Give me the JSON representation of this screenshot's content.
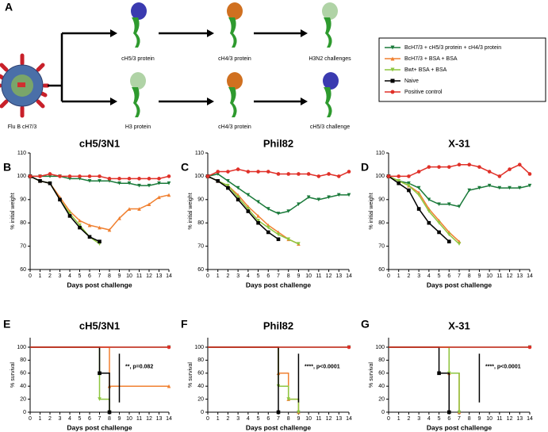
{
  "schematic": {
    "panel": "A",
    "virus": "Flu B cH7/3",
    "top": [
      "cH5/3 protein",
      "cH4/3 protein",
      "H3N2 challenges"
    ],
    "bottom": [
      "H3 protein",
      "cH4/3 protein",
      "cH5/3 challenge"
    ]
  },
  "legend": [
    {
      "name": "BcH7/3 + cH5/3 protein + cH4/3 protein",
      "color": "#1a7a3a"
    },
    {
      "name": "BcH7/3 + BSA + BSA",
      "color": "#f08030"
    },
    {
      "name": "Bwt+ BSA + BSA",
      "color": "#8dc63f"
    },
    {
      "name": "Naive",
      "color": "#000000"
    },
    {
      "name": "Positive control",
      "color": "#e03028"
    }
  ],
  "chart_data": [
    {
      "type": "line",
      "panel": "B",
      "title": "cH5/3N1",
      "xlabel": "Days post challenge",
      "ylabel": "% initial weight",
      "x": [
        0,
        1,
        2,
        3,
        4,
        5,
        6,
        7,
        8,
        9,
        10,
        11,
        12,
        13,
        14
      ],
      "xlim": [
        0,
        14
      ],
      "xticks": [
        0,
        1,
        2,
        3,
        4,
        5,
        6,
        7,
        8,
        9,
        10,
        11,
        12,
        13,
        14
      ],
      "ylim": [
        60,
        110
      ],
      "yticks": [
        60,
        70,
        80,
        90,
        100,
        110
      ],
      "series": [
        {
          "color": "#1a7a3a",
          "values": [
            100,
            100,
            100,
            100,
            99,
            99,
            98,
            98,
            98,
            97,
            97,
            96,
            96,
            97,
            97
          ]
        },
        {
          "color": "#f08030",
          "values": [
            100,
            98,
            97,
            91,
            85,
            81,
            79,
            78,
            77,
            82,
            86,
            86,
            88,
            91,
            92
          ]
        },
        {
          "color": "#8dc63f",
          "values": [
            100,
            98,
            97,
            90,
            84,
            79,
            74,
            71,
            null,
            null,
            null,
            null,
            null,
            null,
            null
          ]
        },
        {
          "color": "#000000",
          "values": [
            100,
            98,
            97,
            90,
            83,
            78,
            74,
            72,
            null,
            null,
            null,
            null,
            null,
            null,
            null
          ]
        },
        {
          "color": "#e03028",
          "values": [
            100,
            100,
            101,
            100,
            100,
            100,
            100,
            100,
            99,
            99,
            99,
            99,
            99,
            99,
            100
          ]
        }
      ]
    },
    {
      "type": "line",
      "panel": "C",
      "title": "Phil82",
      "xlabel": "Days post challenge",
      "ylabel": "% initial weight",
      "x": [
        0,
        1,
        2,
        3,
        4,
        5,
        6,
        7,
        8,
        9,
        10,
        11,
        12,
        13,
        14
      ],
      "xlim": [
        0,
        14
      ],
      "xticks": [
        0,
        1,
        2,
        3,
        4,
        5,
        6,
        7,
        8,
        9,
        10,
        11,
        12,
        13,
        14
      ],
      "ylim": [
        60,
        110
      ],
      "yticks": [
        60,
        70,
        80,
        90,
        100,
        110
      ],
      "series": [
        {
          "color": "#1a7a3a",
          "values": [
            100,
            101,
            98,
            95,
            92,
            89,
            86,
            84,
            85,
            88,
            91,
            90,
            91,
            92,
            92
          ]
        },
        {
          "color": "#f08030",
          "values": [
            100,
            98,
            96,
            92,
            87,
            83,
            79,
            76,
            73,
            71,
            null,
            null,
            null,
            null,
            null
          ]
        },
        {
          "color": "#8dc63f",
          "values": [
            100,
            98,
            96,
            91,
            86,
            81,
            78,
            75,
            73,
            71,
            null,
            null,
            null,
            null,
            null
          ]
        },
        {
          "color": "#000000",
          "values": [
            100,
            98,
            95,
            90,
            85,
            80,
            76,
            73,
            null,
            null,
            null,
            null,
            null,
            null,
            null
          ]
        },
        {
          "color": "#e03028",
          "values": [
            100,
            102,
            102,
            103,
            102,
            102,
            102,
            101,
            101,
            101,
            101,
            100,
            101,
            100,
            102
          ]
        }
      ]
    },
    {
      "type": "line",
      "panel": "D",
      "title": "X-31",
      "xlabel": "Days post challenge",
      "ylabel": "% initial weight",
      "x": [
        0,
        1,
        2,
        3,
        4,
        5,
        6,
        7,
        8,
        9,
        10,
        11,
        12,
        13,
        14
      ],
      "xlim": [
        0,
        14
      ],
      "xticks": [
        0,
        1,
        2,
        3,
        4,
        5,
        6,
        7,
        8,
        9,
        10,
        11,
        12,
        13,
        14
      ],
      "ylim": [
        60,
        110
      ],
      "yticks": [
        60,
        70,
        80,
        90,
        100,
        110
      ],
      "series": [
        {
          "color": "#1a7a3a",
          "values": [
            100,
            98,
            97,
            95,
            90,
            88,
            88,
            87,
            94,
            95,
            96,
            95,
            95,
            95,
            96
          ]
        },
        {
          "color": "#f08030",
          "values": [
            100,
            98,
            96,
            93,
            86,
            81,
            76,
            72,
            null,
            null,
            null,
            null,
            null,
            null,
            null
          ]
        },
        {
          "color": "#8dc63f",
          "values": [
            100,
            98,
            96,
            92,
            85,
            80,
            75,
            71,
            null,
            null,
            null,
            null,
            null,
            null,
            null
          ]
        },
        {
          "color": "#000000",
          "values": [
            100,
            97,
            94,
            86,
            80,
            76,
            72,
            null,
            null,
            null,
            null,
            null,
            null,
            null,
            null
          ]
        },
        {
          "color": "#e03028",
          "values": [
            100,
            100,
            100,
            102,
            104,
            104,
            104,
            105,
            105,
            104,
            102,
            100,
            103,
            105,
            101
          ]
        }
      ]
    },
    {
      "type": "line",
      "step": true,
      "panel": "E",
      "title": "cH5/3N1",
      "xlabel": "Days post challenge",
      "ylabel": "% survival",
      "annotation": "**, p=0.082",
      "x": [
        0,
        1,
        2,
        3,
        4,
        5,
        6,
        7,
        8,
        9,
        10,
        11,
        12,
        13,
        14
      ],
      "xlim": [
        0,
        14
      ],
      "xticks": [
        0,
        1,
        2,
        3,
        4,
        5,
        6,
        7,
        8,
        9,
        10,
        11,
        12,
        13,
        14
      ],
      "ylim": [
        0,
        100
      ],
      "yticks": [
        0,
        20,
        40,
        60,
        80,
        100
      ],
      "series": [
        {
          "color": "#1a7a3a",
          "values": [
            100,
            100,
            100,
            100,
            100,
            100,
            100,
            100,
            100,
            100,
            100,
            100,
            100,
            100,
            100
          ]
        },
        {
          "color": "#f08030",
          "values": [
            100,
            100,
            100,
            100,
            100,
            100,
            100,
            100,
            40,
            40,
            40,
            40,
            40,
            40,
            40
          ]
        },
        {
          "color": "#8dc63f",
          "values": [
            100,
            100,
            100,
            100,
            100,
            100,
            100,
            20,
            0,
            null,
            null,
            null,
            null,
            null,
            null
          ]
        },
        {
          "color": "#000000",
          "values": [
            100,
            100,
            100,
            100,
            100,
            100,
            100,
            60,
            0,
            null,
            null,
            null,
            null,
            null,
            null
          ]
        },
        {
          "color": "#e03028",
          "values": [
            100,
            100,
            100,
            100,
            100,
            100,
            100,
            100,
            100,
            100,
            100,
            100,
            100,
            100,
            100
          ]
        }
      ]
    },
    {
      "type": "line",
      "step": true,
      "panel": "F",
      "title": "Phil82",
      "xlabel": "Days post challenge",
      "ylabel": "% survival",
      "annotation": "****, p<0.0001",
      "x": [
        0,
        1,
        2,
        3,
        4,
        5,
        6,
        7,
        8,
        9,
        10,
        11,
        12,
        13,
        14
      ],
      "xlim": [
        0,
        14
      ],
      "xticks": [
        0,
        1,
        2,
        3,
        4,
        5,
        6,
        7,
        8,
        9,
        10,
        11,
        12,
        13,
        14
      ],
      "ylim": [
        0,
        100
      ],
      "yticks": [
        0,
        20,
        40,
        60,
        80,
        100
      ],
      "series": [
        {
          "color": "#1a7a3a",
          "values": [
            100,
            100,
            100,
            100,
            100,
            100,
            100,
            100,
            100,
            100,
            100,
            100,
            100,
            100,
            100
          ]
        },
        {
          "color": "#f08030",
          "values": [
            100,
            100,
            100,
            100,
            100,
            100,
            100,
            60,
            20,
            0,
            null,
            null,
            null,
            null,
            null
          ]
        },
        {
          "color": "#8dc63f",
          "values": [
            100,
            100,
            100,
            100,
            100,
            100,
            100,
            40,
            20,
            0,
            null,
            null,
            null,
            null,
            null
          ]
        },
        {
          "color": "#000000",
          "values": [
            100,
            100,
            100,
            100,
            100,
            100,
            100,
            0,
            null,
            null,
            null,
            null,
            null,
            null,
            null
          ]
        },
        {
          "color": "#e03028",
          "values": [
            100,
            100,
            100,
            100,
            100,
            100,
            100,
            100,
            100,
            100,
            100,
            100,
            100,
            100,
            100
          ]
        }
      ]
    },
    {
      "type": "line",
      "step": true,
      "panel": "G",
      "title": "X-31",
      "xlabel": "Days post challenge",
      "ylabel": "% survival",
      "annotation": "****, p<0.0001",
      "x": [
        0,
        1,
        2,
        3,
        4,
        5,
        6,
        7,
        8,
        9,
        10,
        11,
        12,
        13,
        14
      ],
      "xlim": [
        0,
        14
      ],
      "xticks": [
        0,
        1,
        2,
        3,
        4,
        5,
        6,
        7,
        8,
        9,
        10,
        11,
        12,
        13,
        14
      ],
      "ylim": [
        0,
        100
      ],
      "yticks": [
        0,
        20,
        40,
        60,
        80,
        100
      ],
      "series": [
        {
          "color": "#1a7a3a",
          "values": [
            100,
            100,
            100,
            100,
            100,
            100,
            100,
            100,
            100,
            100,
            100,
            100,
            100,
            100,
            100
          ]
        },
        {
          "color": "#f08030",
          "values": [
            100,
            100,
            100,
            100,
            100,
            100,
            60,
            0,
            null,
            null,
            null,
            null,
            null,
            null,
            null
          ]
        },
        {
          "color": "#8dc63f",
          "values": [
            100,
            100,
            100,
            100,
            100,
            100,
            60,
            0,
            null,
            null,
            null,
            null,
            null,
            null,
            null
          ]
        },
        {
          "color": "#000000",
          "values": [
            100,
            100,
            100,
            100,
            100,
            60,
            0,
            null,
            null,
            null,
            null,
            null,
            null,
            null,
            null
          ]
        },
        {
          "color": "#e03028",
          "values": [
            100,
            100,
            100,
            100,
            100,
            100,
            100,
            100,
            100,
            100,
            100,
            100,
            100,
            100,
            100
          ]
        }
      ]
    }
  ]
}
